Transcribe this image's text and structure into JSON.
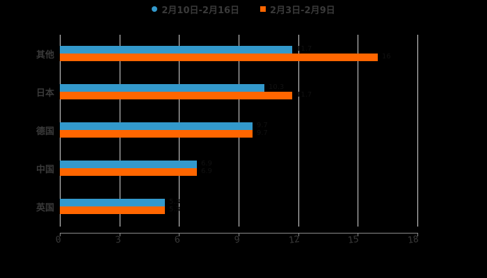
{
  "chart_data": {
    "type": "bar",
    "orientation": "horizontal",
    "title": "",
    "xlabel": "",
    "ylabel": "",
    "categories": [
      "其他",
      "日本",
      "德国",
      "中国",
      "英国"
    ],
    "series": [
      {
        "name": "2月10日-2月16日",
        "color": "#3399CC",
        "marker": "circle",
        "values": [
          11.7,
          10.3,
          9.7,
          6.9,
          5.3
        ]
      },
      {
        "name": "2月3日-2月9日",
        "color": "#FF6600",
        "marker": "square",
        "values": [
          16.0,
          11.7,
          9.7,
          6.9,
          5.3
        ]
      }
    ],
    "xlim": [
      0,
      18
    ],
    "xticks": [
      "0",
      "3",
      "6",
      "9",
      "12",
      "15",
      "18"
    ],
    "grid": true,
    "legend_position": "top"
  },
  "legend": {
    "items": [
      {
        "label": "2月10日-2月16日",
        "color": "#3399CC"
      },
      {
        "label": "2月3日-2月9日",
        "color": "#FF6600"
      }
    ]
  },
  "axis": {
    "ticks": [
      "0",
      "3",
      "6",
      "9",
      "12",
      "15",
      "18"
    ]
  },
  "categories": [
    "其他",
    "日本",
    "德国",
    "中国",
    "英国"
  ]
}
